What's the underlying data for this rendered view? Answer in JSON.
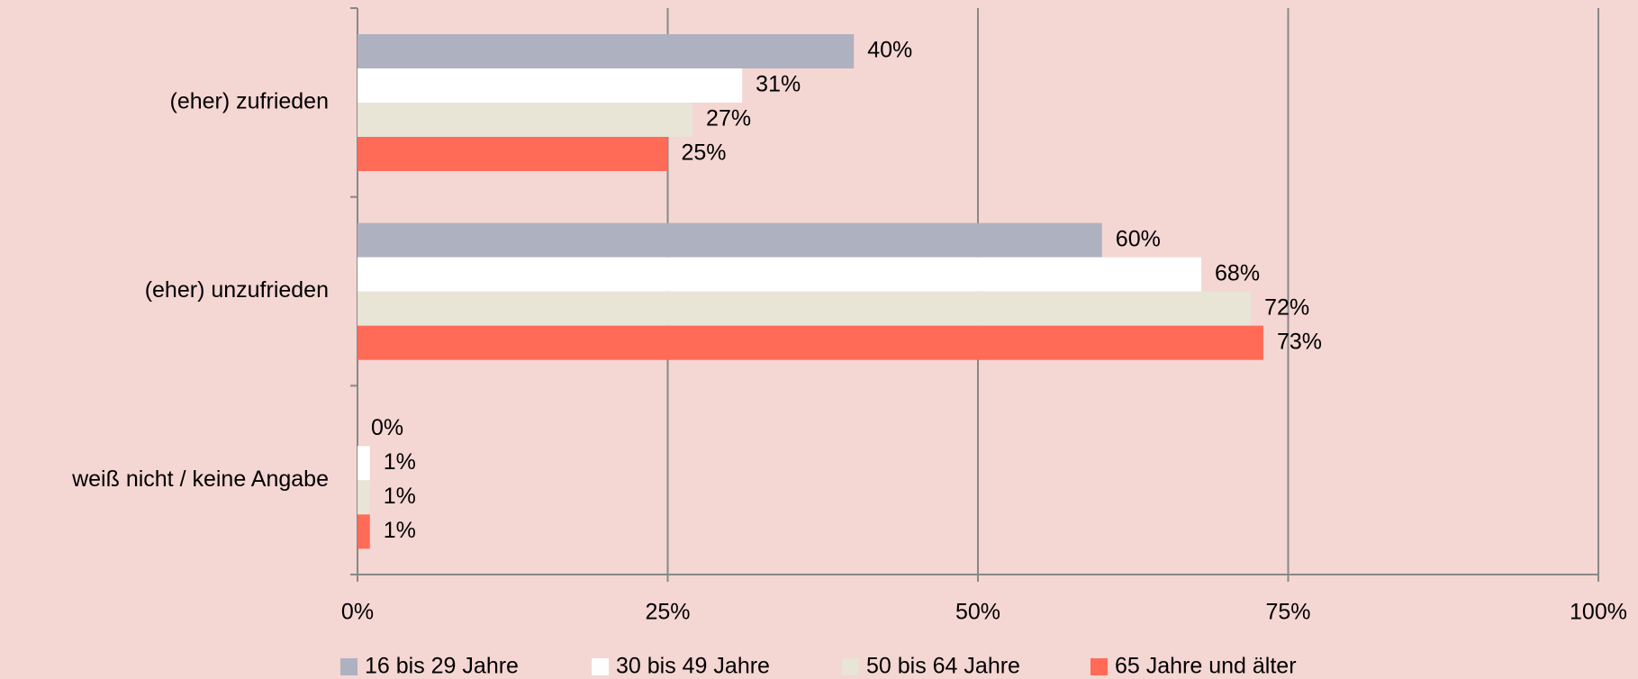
{
  "chart_data": {
    "type": "hbar",
    "categories": [
      "(eher) zufrieden",
      "(eher) unzufrieden",
      "weiß nicht / keine Angabe"
    ],
    "series": [
      {
        "name": "16 bis 29 Jahre",
        "color": "#aeb1c0",
        "values": [
          40,
          60,
          0
        ],
        "value_labels": [
          "40%",
          "60%",
          "0%"
        ]
      },
      {
        "name": "30 bis 49 Jahre",
        "color": "#ffffff",
        "values": [
          31,
          68,
          1
        ],
        "value_labels": [
          "31%",
          "68%",
          "1%"
        ]
      },
      {
        "name": "50 bis 64 Jahre",
        "color": "#e8e4d6",
        "values": [
          27,
          72,
          1
        ],
        "value_labels": [
          "27%",
          "72%",
          "1%"
        ]
      },
      {
        "name": "65 Jahre und älter",
        "color": "#ff6b57",
        "values": [
          25,
          73,
          1
        ],
        "value_labels": [
          "25%",
          "73%",
          "1%"
        ]
      }
    ],
    "xlim": [
      0,
      100
    ],
    "xticks": [
      {
        "value": 0,
        "label": "0%"
      },
      {
        "value": 25,
        "label": "25%"
      },
      {
        "value": 50,
        "label": "50%"
      },
      {
        "value": 75,
        "label": "75%"
      },
      {
        "value": 100,
        "label": "100%"
      }
    ],
    "grid": true,
    "legend": "bottom"
  }
}
